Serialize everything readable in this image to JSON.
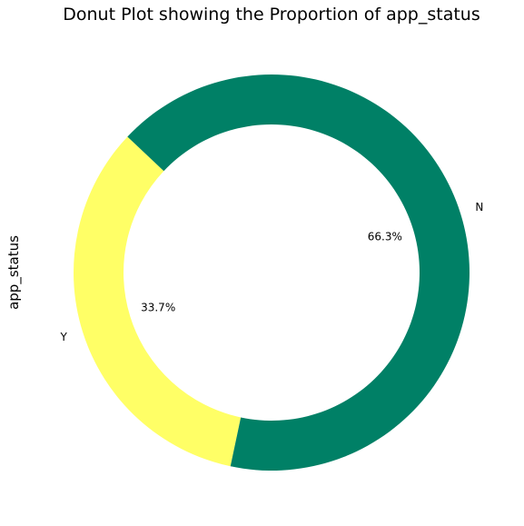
{
  "chart_data": {
    "type": "pie",
    "variant": "donut",
    "title": "Donut Plot showing the Proportion of app_status",
    "ylabel": "app_status",
    "slices": [
      {
        "label": "Y",
        "value": 33.7,
        "pct_label": "33.7%",
        "color": "#ffff66"
      },
      {
        "label": "N",
        "value": 66.3,
        "pct_label": "66.3%",
        "color": "#008066"
      }
    ],
    "legend": "none"
  }
}
